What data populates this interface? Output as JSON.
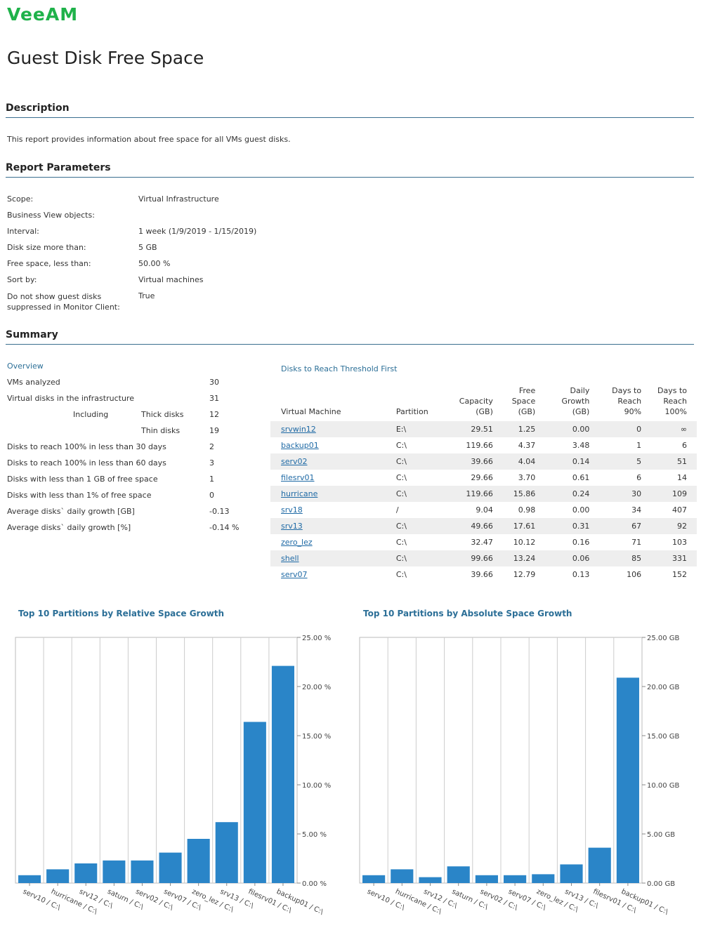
{
  "brand": {
    "logo_text": "VeeAM"
  },
  "page_title": "Guest Disk Free Space",
  "description": {
    "heading": "Description",
    "text": "This report provides information about free space for all VMs guest disks."
  },
  "parameters": {
    "heading": "Report Parameters",
    "rows": [
      {
        "label": "Scope:",
        "value": "Virtual Infrastructure"
      },
      {
        "label": "Business View objects:",
        "value": ""
      },
      {
        "label": "Interval:",
        "value": "1 week (1/9/2019 - 1/15/2019)"
      },
      {
        "label": "Disk size more than:",
        "value": "5 GB"
      },
      {
        "label": "Free space, less than:",
        "value": "50.00 %"
      },
      {
        "label": "Sort by:",
        "value": "Virtual machines"
      },
      {
        "label": "Do not show guest disks suppressed in Monitor Client:",
        "value": "True"
      }
    ]
  },
  "summary": {
    "heading": "Summary",
    "overview": {
      "title": "Overview",
      "vms_analyzed_label": "VMs analyzed",
      "vms_analyzed": "30",
      "virtual_disks_label": "Virtual disks in the infrastructure",
      "virtual_disks": "31",
      "including_label": "Including",
      "thick_label": "Thick disks",
      "thick": "12",
      "thin_label": "Thin disks",
      "thin": "19",
      "rows": [
        {
          "label": "Disks to reach 100% in less than 30 days",
          "value": "2"
        },
        {
          "label": "Disks to reach 100% in less than 60 days",
          "value": "3"
        },
        {
          "label": "Disks with less than 1 GB of free space",
          "value": "1"
        },
        {
          "label": "Disks with less than 1% of free space",
          "value": "0"
        },
        {
          "label": "Average disks` daily growth [GB]",
          "value": "-0.13"
        },
        {
          "label": "Average disks` daily growth [%]",
          "value": "-0.14 %"
        }
      ]
    },
    "threshold": {
      "title": "Disks to Reach Threshold First",
      "columns": [
        "Virtual Machine",
        "Partition",
        "Capacity (GB)",
        "Free Space (GB)",
        "Daily Growth (GB)",
        "Days to Reach 90%",
        "Days to Reach 100%"
      ],
      "rows": [
        [
          "srvwin12",
          "E:\\",
          "29.51",
          "1.25",
          "0.00",
          "0",
          "∞"
        ],
        [
          "backup01",
          "C:\\",
          "119.66",
          "4.37",
          "3.48",
          "1",
          "6"
        ],
        [
          "serv02",
          "C:\\",
          "39.66",
          "4.04",
          "0.14",
          "5",
          "51"
        ],
        [
          "filesrv01",
          "C:\\",
          "29.66",
          "3.70",
          "0.61",
          "6",
          "14"
        ],
        [
          "hurricane",
          "C:\\",
          "119.66",
          "15.86",
          "0.24",
          "30",
          "109"
        ],
        [
          "srv18",
          "/",
          "9.04",
          "0.98",
          "0.00",
          "34",
          "407"
        ],
        [
          "srv13",
          "C:\\",
          "49.66",
          "17.61",
          "0.31",
          "67",
          "92"
        ],
        [
          "zero_lez",
          "C:\\",
          "32.47",
          "10.12",
          "0.16",
          "71",
          "103"
        ],
        [
          "shell",
          "C:\\",
          "99.66",
          "13.24",
          "0.06",
          "85",
          "331"
        ],
        [
          "serv07",
          "C:\\",
          "39.66",
          "12.79",
          "0.13",
          "106",
          "152"
        ]
      ]
    }
  },
  "chart_data": [
    {
      "type": "bar",
      "title": "Top 10 Partitions by Relative Space Growth",
      "categories": [
        "serv10 / C:\\",
        "hurricane / C:\\",
        "srv12 / C:\\",
        "saturn / C:\\",
        "serv02 / C:\\",
        "serv07 / C:\\",
        "zero_lez / C:\\",
        "srv13 / C:\\",
        "filesrv01 / C:\\",
        "backup01 / C:\\"
      ],
      "values": [
        0.8,
        1.4,
        2.0,
        2.3,
        2.3,
        3.1,
        4.5,
        6.2,
        16.4,
        22.1
      ],
      "ylim": [
        0,
        25
      ],
      "yticks": [
        "0.00 %",
        "5.00 %",
        "10.00 %",
        "15.00 %",
        "20.00 %",
        "25.00 %"
      ],
      "color": "#2a85c8"
    },
    {
      "type": "bar",
      "title": "Top 10 Partitions by Absolute Space Growth",
      "categories": [
        "serv10 / C:\\",
        "hurricane / C:\\",
        "srv12 / C:\\",
        "saturn / C:\\",
        "serv02 / C:\\",
        "serv07 / C:\\",
        "zero_lez / C:\\",
        "srv13 / C:\\",
        "filesrv01 / C:\\",
        "backup01 / C:\\"
      ],
      "values": [
        0.8,
        1.4,
        0.6,
        1.7,
        0.8,
        0.8,
        0.9,
        1.9,
        3.6,
        20.9
      ],
      "ylim": [
        0,
        25
      ],
      "yticks": [
        "0.00 GB",
        "5.00 GB",
        "10.00 GB",
        "15.00 GB",
        "20.00 GB",
        "25.00 GB"
      ],
      "color": "#2a85c8"
    }
  ]
}
